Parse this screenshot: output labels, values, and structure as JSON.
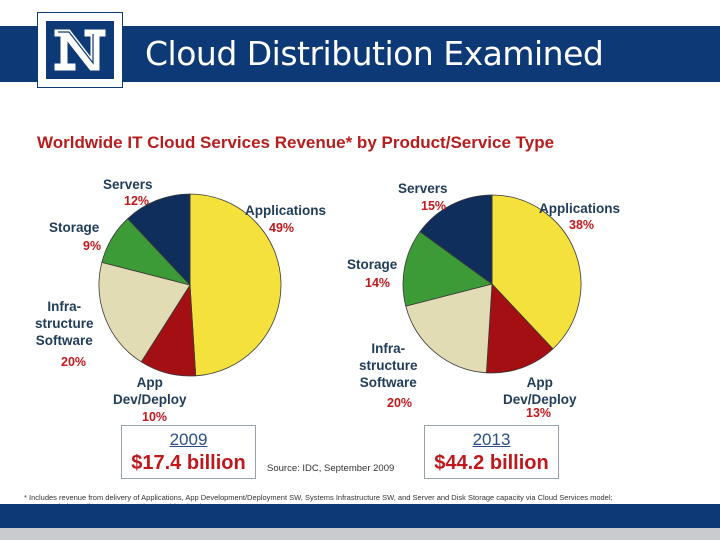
{
  "slide": {
    "title": "Cloud Distribution Examined",
    "logo_text": "N"
  },
  "chart_title": "Worldwide IT Cloud Services Revenue* by Product/Service Type",
  "source": "Source: IDC, September 2009",
  "footnote": "* Includes revenue from delivery of Applications, App Development/Deployment SW, Systems Infrastructure SW, and Server and Disk Storage capacity via Cloud Services model; AD&D excludes online B2B messaging providers/exchanges.",
  "colors": {
    "brand": "#0d3a76",
    "applications": "#f4e13c",
    "app_dev_deploy": "#a30f12",
    "infrastructure_software": "#e2dcb5",
    "storage": "#3c9a37",
    "servers": "#102e5b",
    "label_text": "#213d5c",
    "percent_text": "#c0181c"
  },
  "chart_data": [
    {
      "type": "pie",
      "year": "2009",
      "total": "$17.4 billion",
      "slices": [
        {
          "label": "Applications",
          "value": 49,
          "pct": "49%"
        },
        {
          "label": "App Dev/Deploy",
          "value": 10,
          "pct": "10%"
        },
        {
          "label": "Infra-structure Software",
          "value": 20,
          "pct": "20%"
        },
        {
          "label": "Storage",
          "value": 9,
          "pct": "9%"
        },
        {
          "label": "Servers",
          "value": 12,
          "pct": "12%"
        }
      ]
    },
    {
      "type": "pie",
      "year": "2013",
      "total": "$44.2 billion",
      "slices": [
        {
          "label": "Applications",
          "value": 38,
          "pct": "38%"
        },
        {
          "label": "App Dev/Deploy",
          "value": 13,
          "pct": "13%"
        },
        {
          "label": "Infra-structure Software",
          "value": 20,
          "pct": "20%"
        },
        {
          "label": "Storage",
          "value": 14,
          "pct": "14%"
        },
        {
          "label": "Servers",
          "value": 15,
          "pct": "15%"
        }
      ]
    }
  ],
  "labels": {
    "servers": "Servers",
    "applications": "Applications",
    "storage": "Storage",
    "infra_line1": "Infra-",
    "infra_line2": "structure",
    "infra_line3": "Software",
    "appdev_line1": "App",
    "appdev_line2": "Dev/Deploy"
  }
}
